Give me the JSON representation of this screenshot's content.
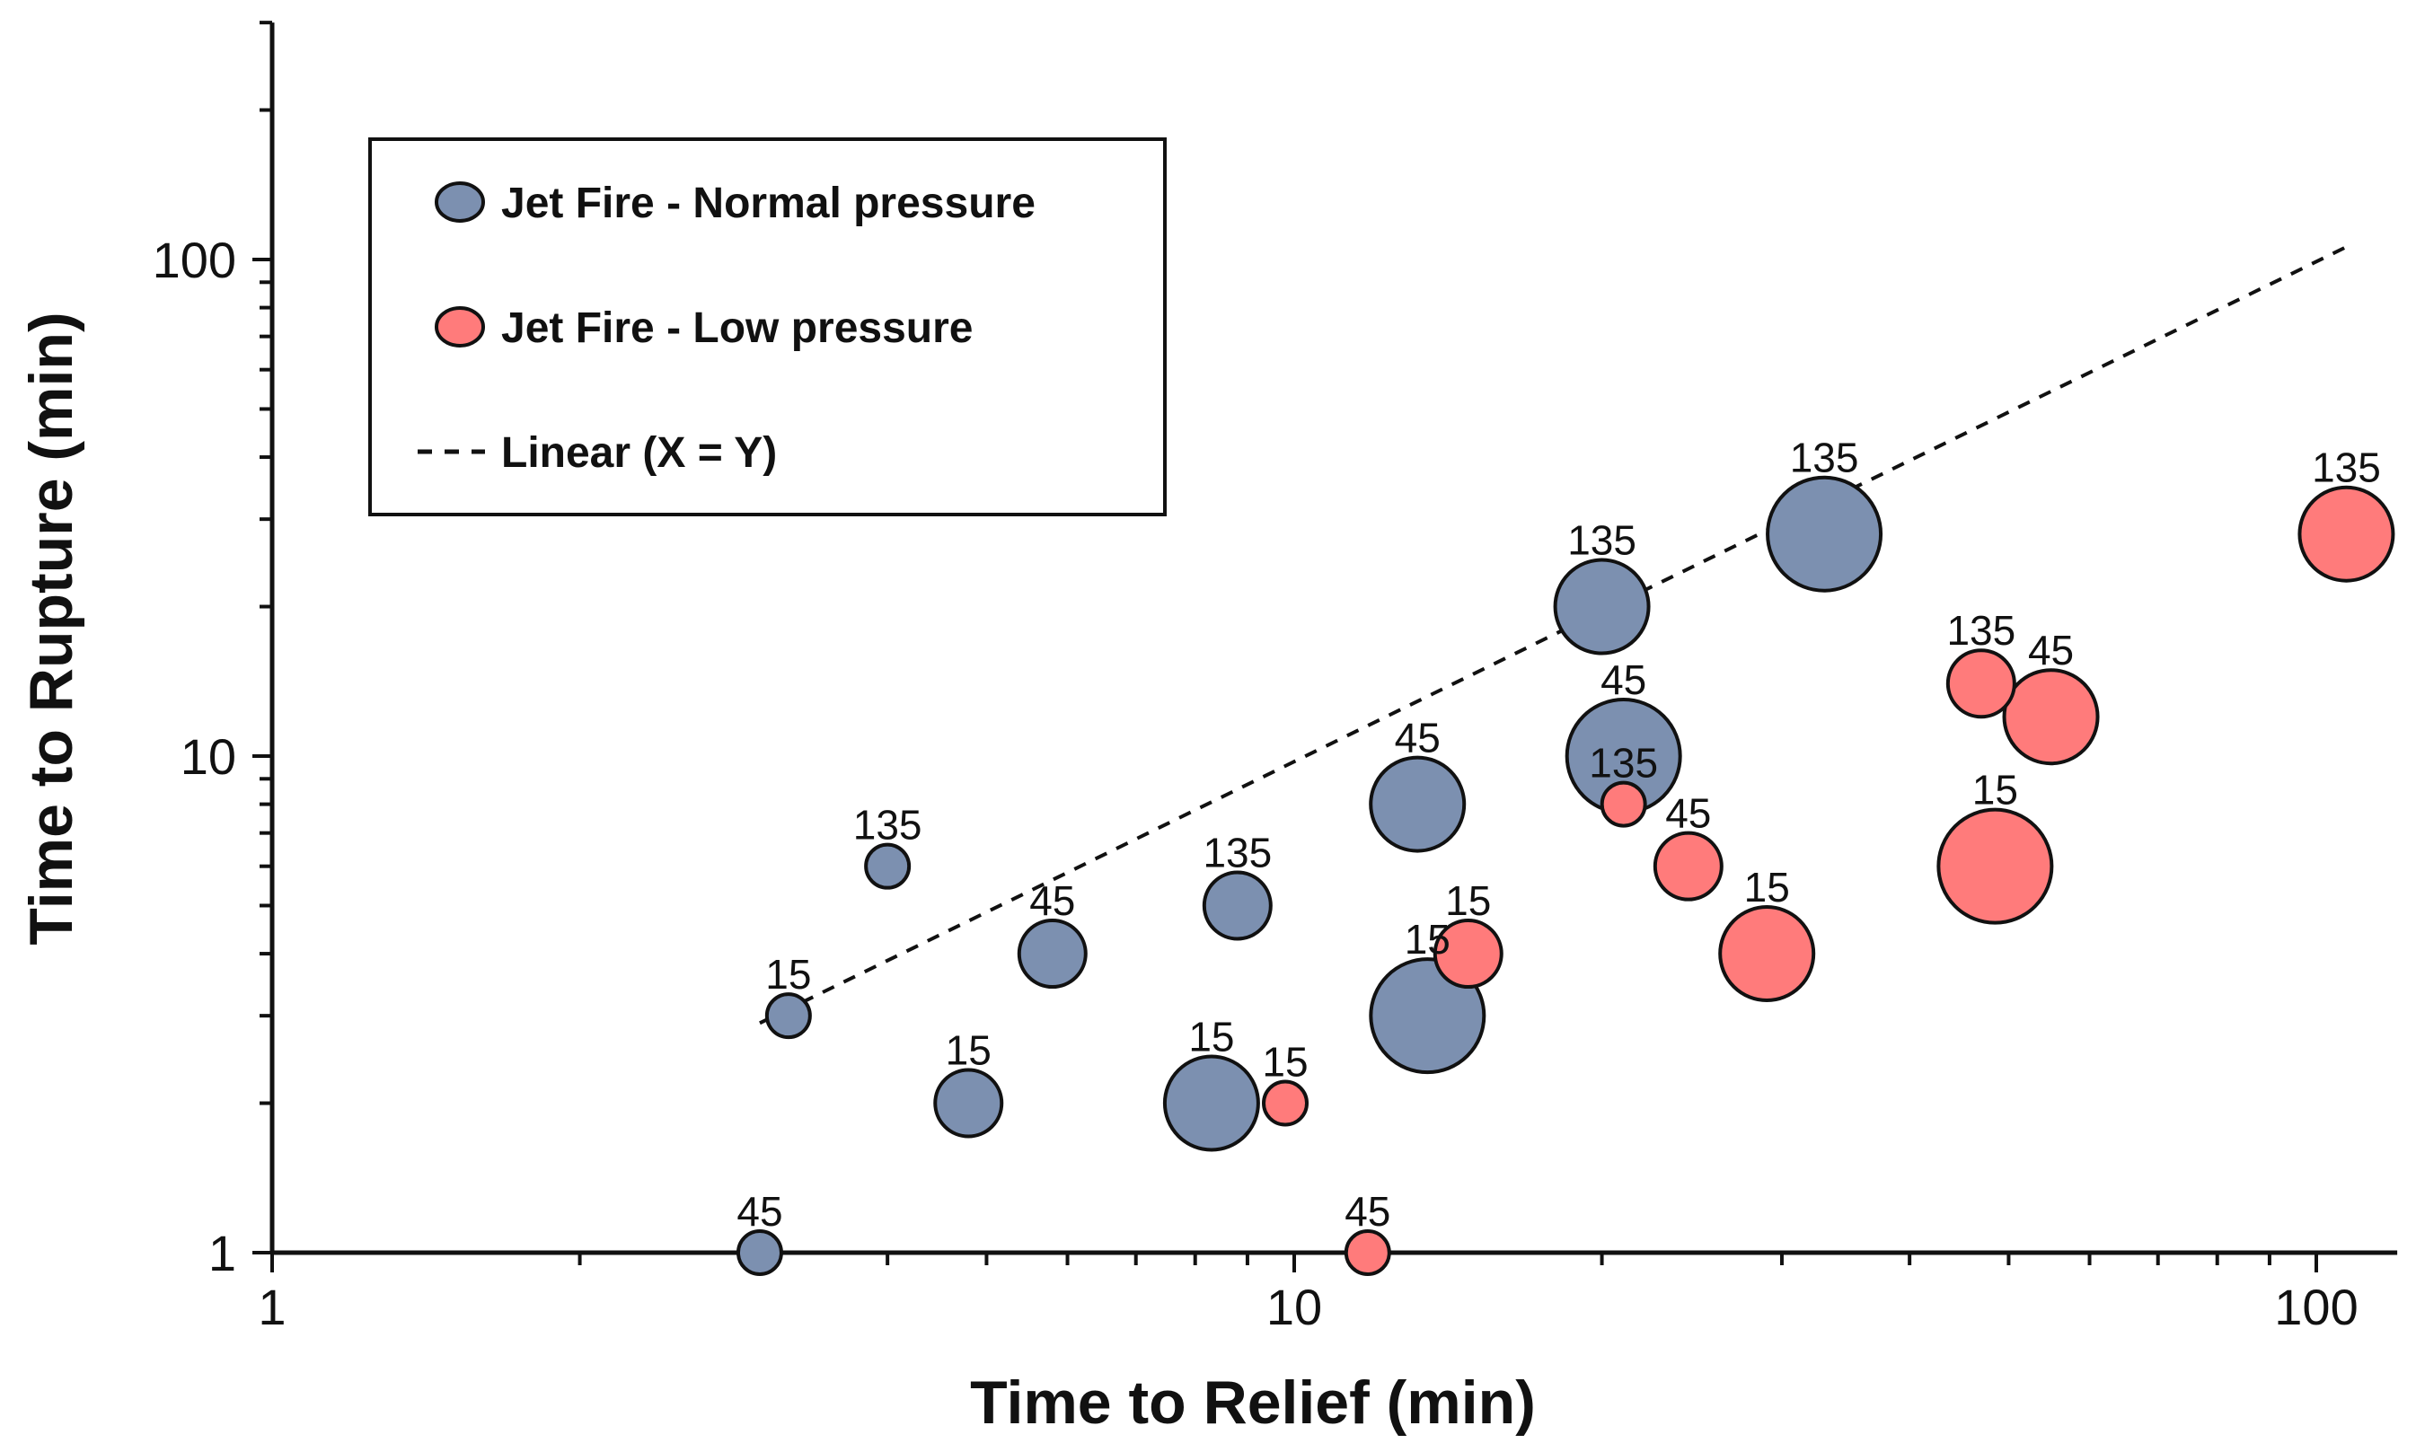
{
  "chart_data": {
    "type": "scatter",
    "subtype": "bubble",
    "title": "",
    "xlabel": "Time to Relief (min)",
    "ylabel": "Time to Rupture (min)",
    "xscale": "log",
    "yscale": "log",
    "xlim": [
      1,
      120
    ],
    "ylim": [
      1,
      300
    ],
    "x_ticks": [
      1,
      10,
      100
    ],
    "y_ticks": [
      1,
      10,
      100
    ],
    "x_tick_labels": [
      "1",
      "10",
      "100"
    ],
    "y_tick_labels": [
      "1",
      "10",
      "100"
    ],
    "grid": false,
    "legend_position": "top-left",
    "series": [
      {
        "name": "Jet Fire - Normal pressure",
        "color": "#7c90b0",
        "points": [
          {
            "x": 3.0,
            "y": 1.0,
            "size": 1,
            "label": "45"
          },
          {
            "x": 3.2,
            "y": 3.0,
            "size": 1,
            "label": "15"
          },
          {
            "x": 4.0,
            "y": 6.0,
            "size": 1,
            "label": "135"
          },
          {
            "x": 4.8,
            "y": 2.0,
            "size": 2,
            "label": "15"
          },
          {
            "x": 5.8,
            "y": 4.0,
            "size": 2,
            "label": "45"
          },
          {
            "x": 8.3,
            "y": 2.0,
            "size": 3,
            "label": "15"
          },
          {
            "x": 8.8,
            "y": 5.0,
            "size": 2,
            "label": "135"
          },
          {
            "x": 13.2,
            "y": 8.0,
            "size": 3,
            "label": "45"
          },
          {
            "x": 13.5,
            "y": 3.0,
            "size": 4,
            "label": "15"
          },
          {
            "x": 20.0,
            "y": 20.0,
            "size": 3,
            "label": "135"
          },
          {
            "x": 21.0,
            "y": 10.0,
            "size": 4,
            "label": "45"
          },
          {
            "x": 33.0,
            "y": 28.0,
            "size": 4,
            "label": "135"
          }
        ]
      },
      {
        "name": "Jet Fire - Low pressure",
        "color": "#ff7b7b",
        "points": [
          {
            "x": 9.8,
            "y": 2.0,
            "size": 1,
            "label": "15"
          },
          {
            "x": 11.8,
            "y": 1.0,
            "size": 1,
            "label": "45"
          },
          {
            "x": 14.8,
            "y": 4.0,
            "size": 2,
            "label": "15"
          },
          {
            "x": 21.0,
            "y": 8.0,
            "size": 1,
            "label": "135"
          },
          {
            "x": 24.3,
            "y": 6.0,
            "size": 2,
            "label": "45"
          },
          {
            "x": 29.0,
            "y": 4.0,
            "size": 3,
            "label": "15"
          },
          {
            "x": 47.0,
            "y": 14.0,
            "size": 2,
            "label": "135"
          },
          {
            "x": 48.5,
            "y": 6.0,
            "size": 4,
            "label": "15"
          },
          {
            "x": 55.0,
            "y": 12.0,
            "size": 3,
            "label": "45"
          },
          {
            "x": 107.0,
            "y": 28.0,
            "size": 3,
            "label": "135"
          }
        ]
      }
    ],
    "trendline": {
      "name": "Linear (X = Y)",
      "style": "dashed",
      "x": [
        3.0,
        107.0
      ],
      "y": [
        2.9,
        106.0
      ]
    }
  }
}
